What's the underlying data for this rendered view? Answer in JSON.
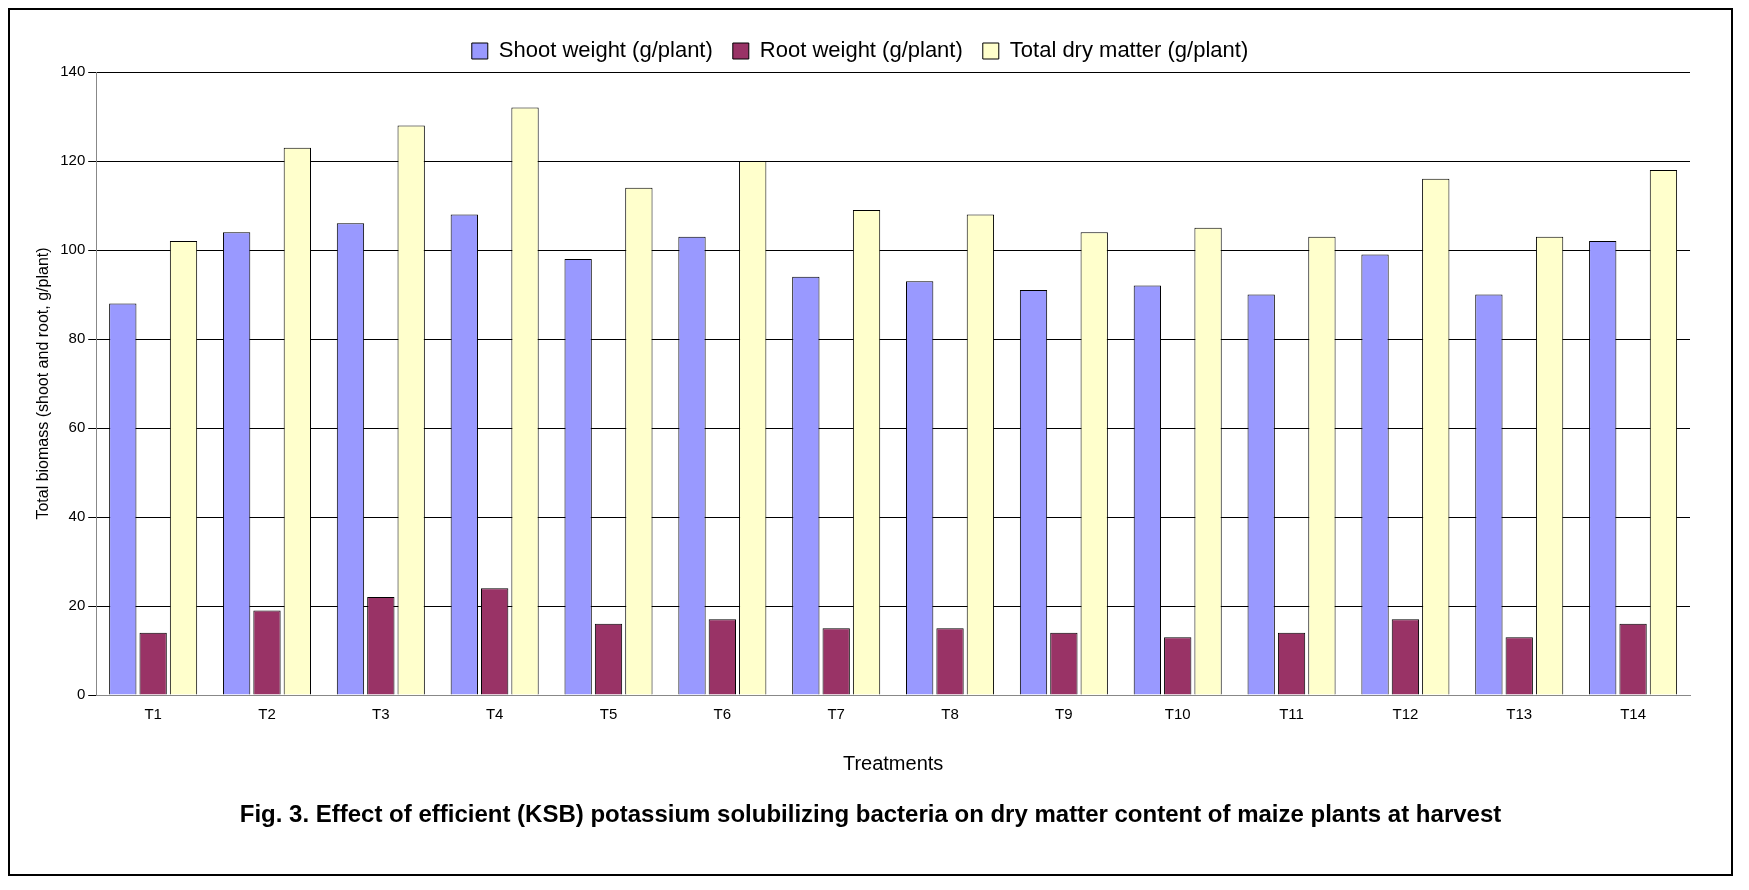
{
  "chart_data": {
    "type": "bar",
    "xlabel": "Treatments",
    "ylabel": "Total biomass (shoot and root, g/plant)",
    "categories": [
      "T1",
      "T2",
      "T3",
      "T4",
      "T5",
      "T6",
      "T7",
      "T8",
      "T9",
      "T10",
      "T11",
      "T12",
      "T13",
      "T14"
    ],
    "series": [
      {
        "name": "Shoot weight (g/plant)",
        "color": "#9999ff",
        "values": [
          88,
          104,
          106,
          108,
          98,
          103,
          94,
          93,
          91,
          92,
          90,
          99,
          90,
          102
        ]
      },
      {
        "name": "Root weight (g/plant)",
        "color": "#993366",
        "values": [
          14,
          19,
          22,
          24,
          16,
          17,
          15,
          15,
          14,
          13,
          14,
          17,
          13,
          16
        ]
      },
      {
        "name": "Total dry matter (g/plant)",
        "color": "#ffffcc",
        "values": [
          102,
          123,
          128,
          132,
          114,
          120,
          109,
          108,
          104,
          105,
          103,
          116,
          103,
          118
        ]
      }
    ],
    "ylim": [
      0,
      140
    ],
    "yticks": [
      0,
      20,
      40,
      60,
      80,
      100,
      120,
      140
    ],
    "grid": "y",
    "legend": "top",
    "annotations": [
      "Fig. 3.  Effect of efficient (KSB) potassium solubilizing bacteria on dry matter content of maize plants at harvest"
    ]
  }
}
